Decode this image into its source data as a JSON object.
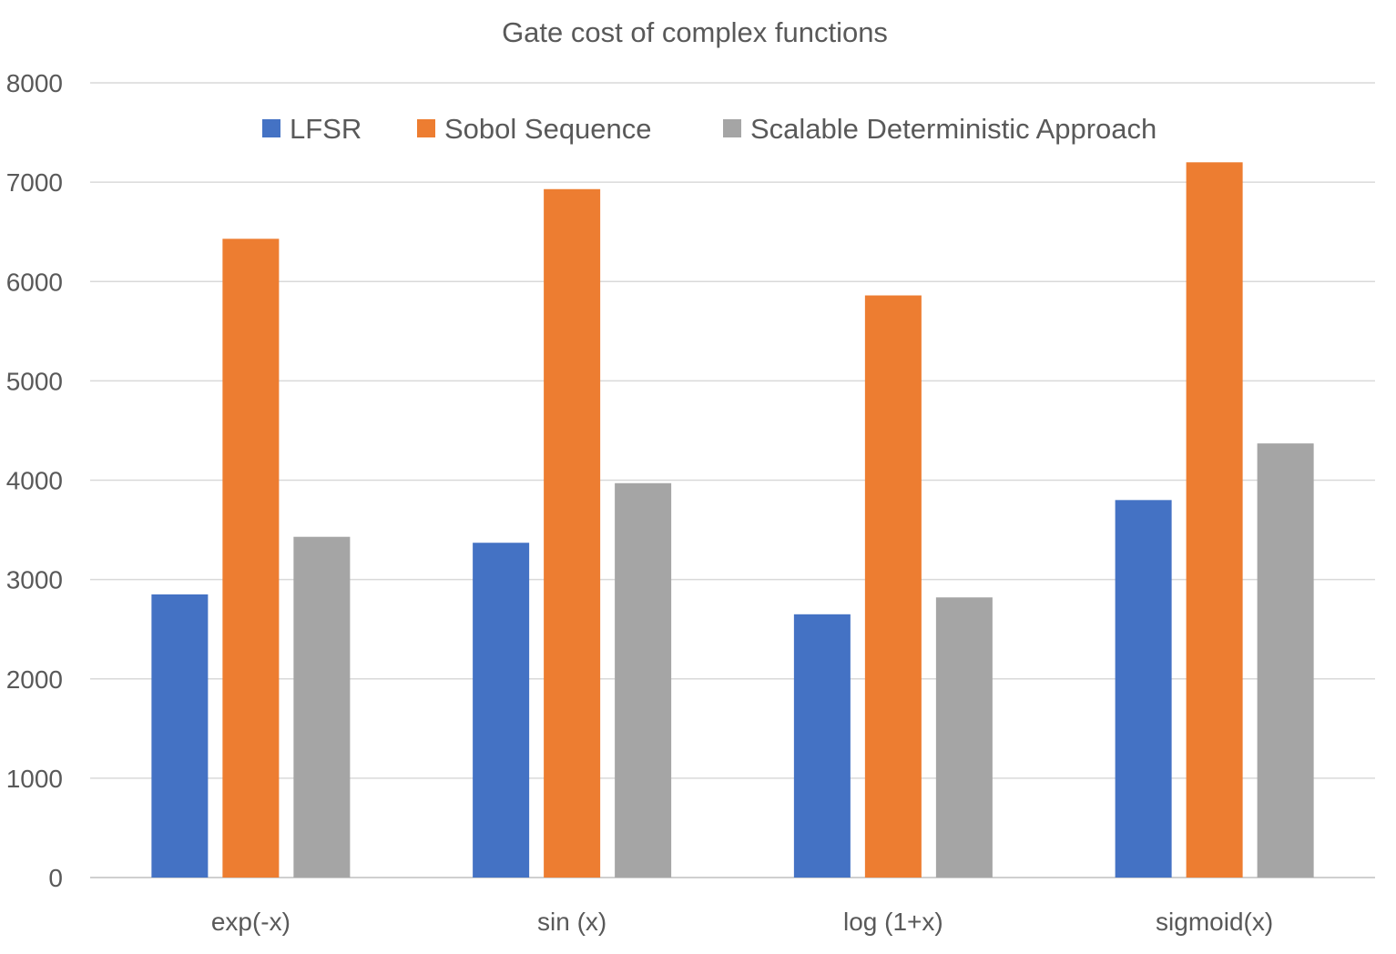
{
  "chart_data": {
    "type": "bar",
    "title": "Gate cost of complex functions",
    "xlabel": "",
    "ylabel": "",
    "categories": [
      "exp(-x)",
      "sin (x)",
      "log (1+x)",
      "sigmoid(x)"
    ],
    "series": [
      {
        "name": "LFSR",
        "color": "#4472c4",
        "values": [
          2850,
          3370,
          2650,
          3800
        ]
      },
      {
        "name": "Sobol Sequence",
        "color": "#ed7d31",
        "values": [
          6430,
          6930,
          5860,
          7200
        ]
      },
      {
        "name": "Scalable Deterministic Approach",
        "color": "#a5a5a5",
        "values": [
          3430,
          3970,
          2820,
          4370
        ]
      }
    ],
    "ylim": [
      0,
      8000
    ],
    "yticks": [
      0,
      1000,
      2000,
      3000,
      4000,
      5000,
      6000,
      7000,
      8000
    ],
    "grid": true,
    "legend_position": "top-center"
  }
}
